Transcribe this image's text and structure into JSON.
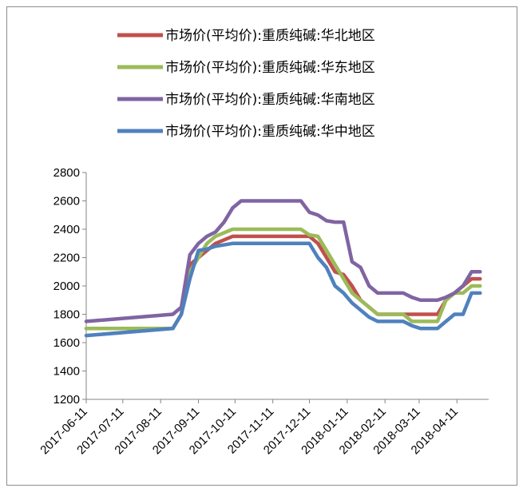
{
  "chart_data": {
    "type": "line",
    "title": "",
    "xlabel": "",
    "ylabel": "",
    "ylim": [
      1200,
      2800
    ],
    "yticks": [
      1200,
      1400,
      1600,
      1800,
      2000,
      2200,
      2400,
      2600,
      2800
    ],
    "xticks": [
      "2017-06-11",
      "2017-07-11",
      "2017-08-11",
      "2017-09-11",
      "2017-10-11",
      "2017-11-11",
      "2017-12-11",
      "2018-01-11",
      "2018-02-11",
      "2018-03-11",
      "2018-04-11"
    ],
    "grid": false,
    "legend_position": "top",
    "series": [
      {
        "name": "市场价(平均价):重质纯碱:华北地区",
        "color": "#c0504d",
        "points": [
          [
            "2017-06-11",
            1700
          ],
          [
            "2017-08-21",
            1700
          ],
          [
            "2017-08-28",
            1800
          ],
          [
            "2017-09-04",
            2150
          ],
          [
            "2017-09-11",
            2200
          ],
          [
            "2017-09-18",
            2250
          ],
          [
            "2017-09-25",
            2300
          ],
          [
            "2017-10-09",
            2350
          ],
          [
            "2017-10-16",
            2350
          ],
          [
            "2017-11-13",
            2350
          ],
          [
            "2017-12-04",
            2350
          ],
          [
            "2017-12-11",
            2350
          ],
          [
            "2017-12-18",
            2300
          ],
          [
            "2017-12-25",
            2200
          ],
          [
            "2018-01-01",
            2100
          ],
          [
            "2018-01-08",
            2080
          ],
          [
            "2018-01-15",
            2000
          ],
          [
            "2018-01-22",
            1900
          ],
          [
            "2018-01-29",
            1850
          ],
          [
            "2018-02-05",
            1800
          ],
          [
            "2018-02-26",
            1800
          ],
          [
            "2018-03-05",
            1800
          ],
          [
            "2018-03-26",
            1800
          ],
          [
            "2018-04-02",
            1900
          ],
          [
            "2018-04-09",
            1950
          ],
          [
            "2018-04-16",
            2000
          ],
          [
            "2018-04-23",
            2050
          ],
          [
            "2018-04-30",
            2050
          ]
        ]
      },
      {
        "name": "市场价(平均价):重质纯碱:华东地区",
        "color": "#9bbb59",
        "points": [
          [
            "2017-06-11",
            1700
          ],
          [
            "2017-08-21",
            1700
          ],
          [
            "2017-08-28",
            1800
          ],
          [
            "2017-09-04",
            2100
          ],
          [
            "2017-09-11",
            2200
          ],
          [
            "2017-09-18",
            2300
          ],
          [
            "2017-09-25",
            2350
          ],
          [
            "2017-10-09",
            2400
          ],
          [
            "2017-11-13",
            2400
          ],
          [
            "2017-12-04",
            2400
          ],
          [
            "2017-12-11",
            2360
          ],
          [
            "2017-12-18",
            2350
          ],
          [
            "2017-12-25",
            2250
          ],
          [
            "2018-01-01",
            2150
          ],
          [
            "2018-01-08",
            2050
          ],
          [
            "2018-01-15",
            1950
          ],
          [
            "2018-01-22",
            1900
          ],
          [
            "2018-01-29",
            1850
          ],
          [
            "2018-02-05",
            1800
          ],
          [
            "2018-02-26",
            1800
          ],
          [
            "2018-03-05",
            1750
          ],
          [
            "2018-03-26",
            1750
          ],
          [
            "2018-04-02",
            1900
          ],
          [
            "2018-04-09",
            1950
          ],
          [
            "2018-04-16",
            1950
          ],
          [
            "2018-04-23",
            2000
          ],
          [
            "2018-04-30",
            2000
          ]
        ]
      },
      {
        "name": "市场价(平均价):重质纯碱:华南地区",
        "color": "#8064a2",
        "points": [
          [
            "2017-06-11",
            1750
          ],
          [
            "2017-08-21",
            1800
          ],
          [
            "2017-08-28",
            1850
          ],
          [
            "2017-09-04",
            2220
          ],
          [
            "2017-09-11",
            2300
          ],
          [
            "2017-09-18",
            2350
          ],
          [
            "2017-09-25",
            2380
          ],
          [
            "2017-10-02",
            2450
          ],
          [
            "2017-10-09",
            2550
          ],
          [
            "2017-10-16",
            2600
          ],
          [
            "2017-11-13",
            2600
          ],
          [
            "2017-12-04",
            2600
          ],
          [
            "2017-12-11",
            2520
          ],
          [
            "2017-12-18",
            2500
          ],
          [
            "2017-12-25",
            2460
          ],
          [
            "2018-01-01",
            2450
          ],
          [
            "2018-01-08",
            2450
          ],
          [
            "2018-01-15",
            2170
          ],
          [
            "2018-01-22",
            2130
          ],
          [
            "2018-01-29",
            2000
          ],
          [
            "2018-02-05",
            1950
          ],
          [
            "2018-02-26",
            1950
          ],
          [
            "2018-03-05",
            1920
          ],
          [
            "2018-03-12",
            1900
          ],
          [
            "2018-03-26",
            1900
          ],
          [
            "2018-04-02",
            1920
          ],
          [
            "2018-04-09",
            1950
          ],
          [
            "2018-04-16",
            2000
          ],
          [
            "2018-04-23",
            2100
          ],
          [
            "2018-04-30",
            2100
          ]
        ]
      },
      {
        "name": "市场价(平均价):重质纯碱:华中地区",
        "color": "#4f81bd",
        "points": [
          [
            "2017-06-11",
            1650
          ],
          [
            "2017-08-21",
            1700
          ],
          [
            "2017-08-28",
            1800
          ],
          [
            "2017-09-04",
            2050
          ],
          [
            "2017-09-11",
            2250
          ],
          [
            "2017-09-18",
            2260
          ],
          [
            "2017-09-25",
            2280
          ],
          [
            "2017-10-09",
            2300
          ],
          [
            "2017-11-13",
            2300
          ],
          [
            "2017-12-04",
            2300
          ],
          [
            "2017-12-11",
            2300
          ],
          [
            "2017-12-18",
            2200
          ],
          [
            "2017-12-25",
            2130
          ],
          [
            "2018-01-01",
            2000
          ],
          [
            "2018-01-08",
            1950
          ],
          [
            "2018-01-15",
            1880
          ],
          [
            "2018-01-22",
            1830
          ],
          [
            "2018-01-29",
            1780
          ],
          [
            "2018-02-05",
            1750
          ],
          [
            "2018-02-26",
            1750
          ],
          [
            "2018-03-05",
            1720
          ],
          [
            "2018-03-12",
            1700
          ],
          [
            "2018-03-26",
            1700
          ],
          [
            "2018-04-02",
            1750
          ],
          [
            "2018-04-09",
            1800
          ],
          [
            "2018-04-16",
            1800
          ],
          [
            "2018-04-23",
            1950
          ],
          [
            "2018-04-30",
            1950
          ]
        ]
      }
    ]
  }
}
